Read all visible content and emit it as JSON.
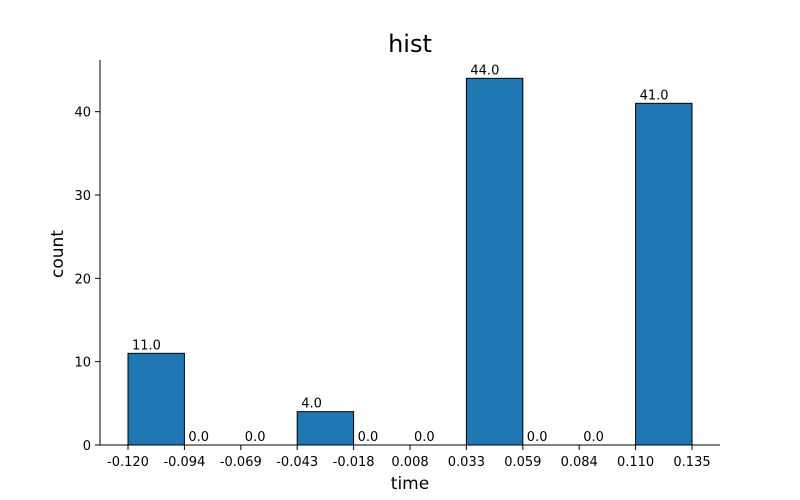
{
  "chart_data": {
    "type": "bar",
    "title": "hist",
    "xlabel": "time",
    "ylabel": "count",
    "bin_edges": [
      -0.12,
      -0.094,
      -0.069,
      -0.043,
      -0.018,
      0.008,
      0.033,
      0.059,
      0.084,
      0.11,
      0.135
    ],
    "xtick_labels": [
      "-0.120",
      "-0.094",
      "-0.069",
      "-0.043",
      "-0.018",
      "0.008",
      "0.033",
      "0.059",
      "0.084",
      "0.110",
      "0.135"
    ],
    "values": [
      11,
      0,
      0,
      4,
      0,
      0,
      44,
      0,
      0,
      41
    ],
    "value_labels": [
      "11.0",
      "0.0",
      "0.0",
      "4.0",
      "0.0",
      "0.0",
      "44.0",
      "0.0",
      "0.0",
      "41.0"
    ],
    "yticks": [
      0,
      10,
      20,
      30,
      40
    ],
    "ylim": [
      0,
      46.2
    ],
    "bar_color": "#1f77b4",
    "edge_color": "#000000",
    "grid": false
  }
}
